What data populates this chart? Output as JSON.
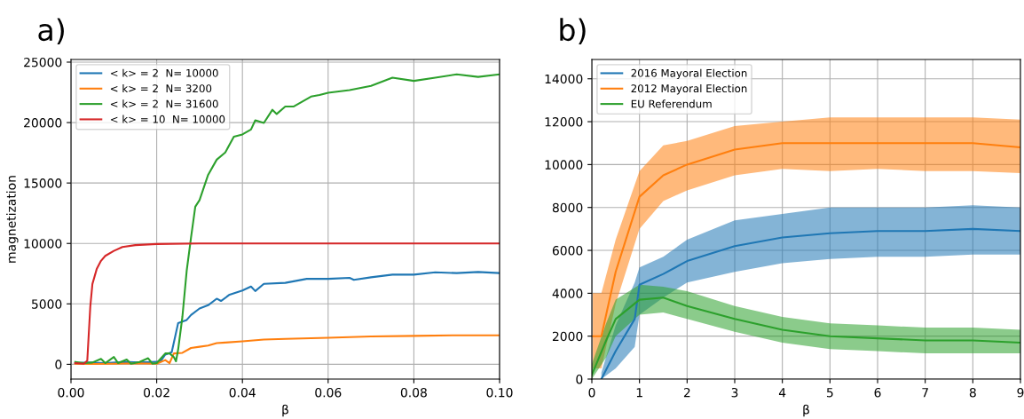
{
  "chart_data": [
    {
      "type": "line",
      "title": "a)",
      "xlabel": "β",
      "ylabel": "magnetization",
      "xlim": [
        0,
        0.1
      ],
      "xticks": [
        {
          "value": 0,
          "label": "0.00"
        },
        {
          "value": 0.02,
          "label": "0.02"
        },
        {
          "value": 0.04,
          "label": "0.04"
        },
        {
          "value": 0.06,
          "label": "0.06"
        },
        {
          "value": 0.08,
          "label": "0.08"
        },
        {
          "value": 0.1,
          "label": "0.10"
        }
      ],
      "ylim": [
        -1220,
        25220
      ],
      "yticks": [
        0,
        5000,
        10000,
        15000,
        20000,
        25000
      ],
      "grid": true,
      "legend": "top left",
      "series": [
        {
          "name": "< k> = 2  N= 10000",
          "color": "#1f77b4",
          "x": [
            0.001,
            0.004,
            0.008,
            0.012,
            0.016,
            0.02,
            0.021,
            0.022,
            0.0235,
            0.025,
            0.027,
            0.028,
            0.03,
            0.032,
            0.034,
            0.035,
            0.037,
            0.04,
            0.042,
            0.043,
            0.045,
            0.05,
            0.055,
            0.06,
            0.065,
            0.066,
            0.07,
            0.075,
            0.08,
            0.085,
            0.09,
            0.095,
            0.1
          ],
          "values": [
            100,
            150,
            100,
            200,
            150,
            200,
            300,
            800,
            1000,
            3400,
            3670,
            4080,
            4620,
            4890,
            5430,
            5240,
            5760,
            6110,
            6440,
            6060,
            6660,
            6740,
            7070,
            7070,
            7150,
            6990,
            7200,
            7420,
            7420,
            7610,
            7550,
            7640,
            7550
          ]
        },
        {
          "name": "< k> = 2  N= 3200",
          "color": "#ff7f0e",
          "x": [
            0.001,
            0.005,
            0.01,
            0.015,
            0.02,
            0.022,
            0.023,
            0.024,
            0.026,
            0.028,
            0.03,
            0.032,
            0.034,
            0.036,
            0.04,
            0.045,
            0.05,
            0.06,
            0.07,
            0.08,
            0.09,
            0.1
          ],
          "values": [
            50,
            30,
            50,
            80,
            50,
            350,
            100,
            900,
            950,
            1350,
            1450,
            1550,
            1750,
            1800,
            1900,
            2050,
            2100,
            2200,
            2300,
            2350,
            2400,
            2400
          ]
        },
        {
          "name": "< k> = 2  N= 31600",
          "color": "#2ca02c",
          "x": [
            0.001,
            0.003,
            0.005,
            0.007,
            0.008,
            0.01,
            0.011,
            0.013,
            0.014,
            0.016,
            0.018,
            0.019,
            0.02,
            0.022,
            0.023,
            0.024,
            0.0245,
            0.025,
            0.026,
            0.027,
            0.028,
            0.029,
            0.03,
            0.032,
            0.034,
            0.036,
            0.038,
            0.04,
            0.042,
            0.043,
            0.045,
            0.047,
            0.048,
            0.05,
            0.052,
            0.054,
            0.056,
            0.058,
            0.06,
            0.065,
            0.07,
            0.075,
            0.08,
            0.085,
            0.09,
            0.095,
            0.1
          ],
          "values": [
            200,
            100,
            150,
            450,
            100,
            600,
            100,
            400,
            50,
            200,
            500,
            50,
            100,
            900,
            900,
            600,
            250,
            1220,
            3940,
            7750,
            10460,
            13040,
            13590,
            15680,
            16930,
            17530,
            18830,
            19020,
            19430,
            20190,
            19970,
            21060,
            20710,
            21330,
            21330,
            21740,
            22150,
            22280,
            22470,
            22690,
            23040,
            23720,
            23450,
            23720,
            23990,
            23780,
            23990
          ]
        },
        {
          "name": "< k> = 10  N= 10000",
          "color": "#d62728",
          "x": [
            0.001,
            0.003,
            0.0038,
            0.0045,
            0.005,
            0.006,
            0.007,
            0.008,
            0.01,
            0.012,
            0.015,
            0.02,
            0.03,
            0.1
          ],
          "values": [
            100,
            50,
            300,
            4750,
            6650,
            7880,
            8560,
            8970,
            9380,
            9700,
            9860,
            9950,
            10000,
            10000
          ]
        }
      ]
    },
    {
      "type": "line",
      "title": "b)",
      "xlabel": "β",
      "xlim": [
        0,
        9
      ],
      "xticks": [
        0,
        1,
        2,
        3,
        4,
        5,
        6,
        7,
        8,
        9
      ],
      "ylim": [
        0,
        14900
      ],
      "yticks": [
        0,
        2000,
        4000,
        6000,
        8000,
        10000,
        12000,
        14000
      ],
      "grid": true,
      "legend": "top left",
      "series": [
        {
          "name": "2016 Mayoral Election",
          "color": "#1f77b4",
          "x": [
            0.2,
            0.5,
            0.9,
            1,
            1.5,
            2,
            3,
            4,
            5,
            6,
            7,
            8,
            9
          ],
          "values": [
            0,
            1300,
            2800,
            4400,
            4900,
            5500,
            6200,
            6600,
            6800,
            6900,
            6900,
            7000,
            6900
          ],
          "lower": [
            0,
            500,
            1500,
            3000,
            3800,
            4500,
            5000,
            5400,
            5600,
            5700,
            5700,
            5800,
            5800
          ],
          "upper": [
            300,
            2500,
            4500,
            5200,
            5700,
            6500,
            7400,
            7700,
            8000,
            8000,
            8000,
            8100,
            8000
          ]
        },
        {
          "name": "2012 Mayoral Election",
          "color": "#ff7f0e",
          "x": [
            0.02,
            0.2,
            0.5,
            1,
            1.5,
            2,
            3,
            4,
            5,
            6,
            7,
            8,
            9
          ],
          "values": [
            2000,
            2000,
            5000,
            8500,
            9500,
            10000,
            10700,
            11000,
            11000,
            11000,
            11000,
            11000,
            10800
          ],
          "lower": [
            500,
            500,
            3500,
            7000,
            8300,
            8800,
            9500,
            9800,
            9700,
            9800,
            9700,
            9700,
            9600
          ],
          "upper": [
            4000,
            4000,
            6500,
            9700,
            10900,
            11100,
            11800,
            12000,
            12200,
            12200,
            12200,
            12200,
            12100
          ]
        },
        {
          "name": "EU Referendum",
          "color": "#2ca02c",
          "x": [
            0,
            0.3,
            0.5,
            1,
            1.5,
            2,
            3,
            4,
            5,
            6,
            7,
            8,
            9
          ],
          "values": [
            200,
            1800,
            2800,
            3700,
            3800,
            3400,
            2800,
            2300,
            2000,
            1900,
            1800,
            1800,
            1700
          ],
          "lower": [
            0,
            1000,
            2000,
            3000,
            3100,
            2800,
            2200,
            1700,
            1400,
            1300,
            1200,
            1200,
            1200
          ],
          "upper": [
            700,
            2600,
            3700,
            4400,
            4300,
            4100,
            3400,
            2900,
            2600,
            2500,
            2400,
            2400,
            2300
          ]
        }
      ]
    }
  ]
}
